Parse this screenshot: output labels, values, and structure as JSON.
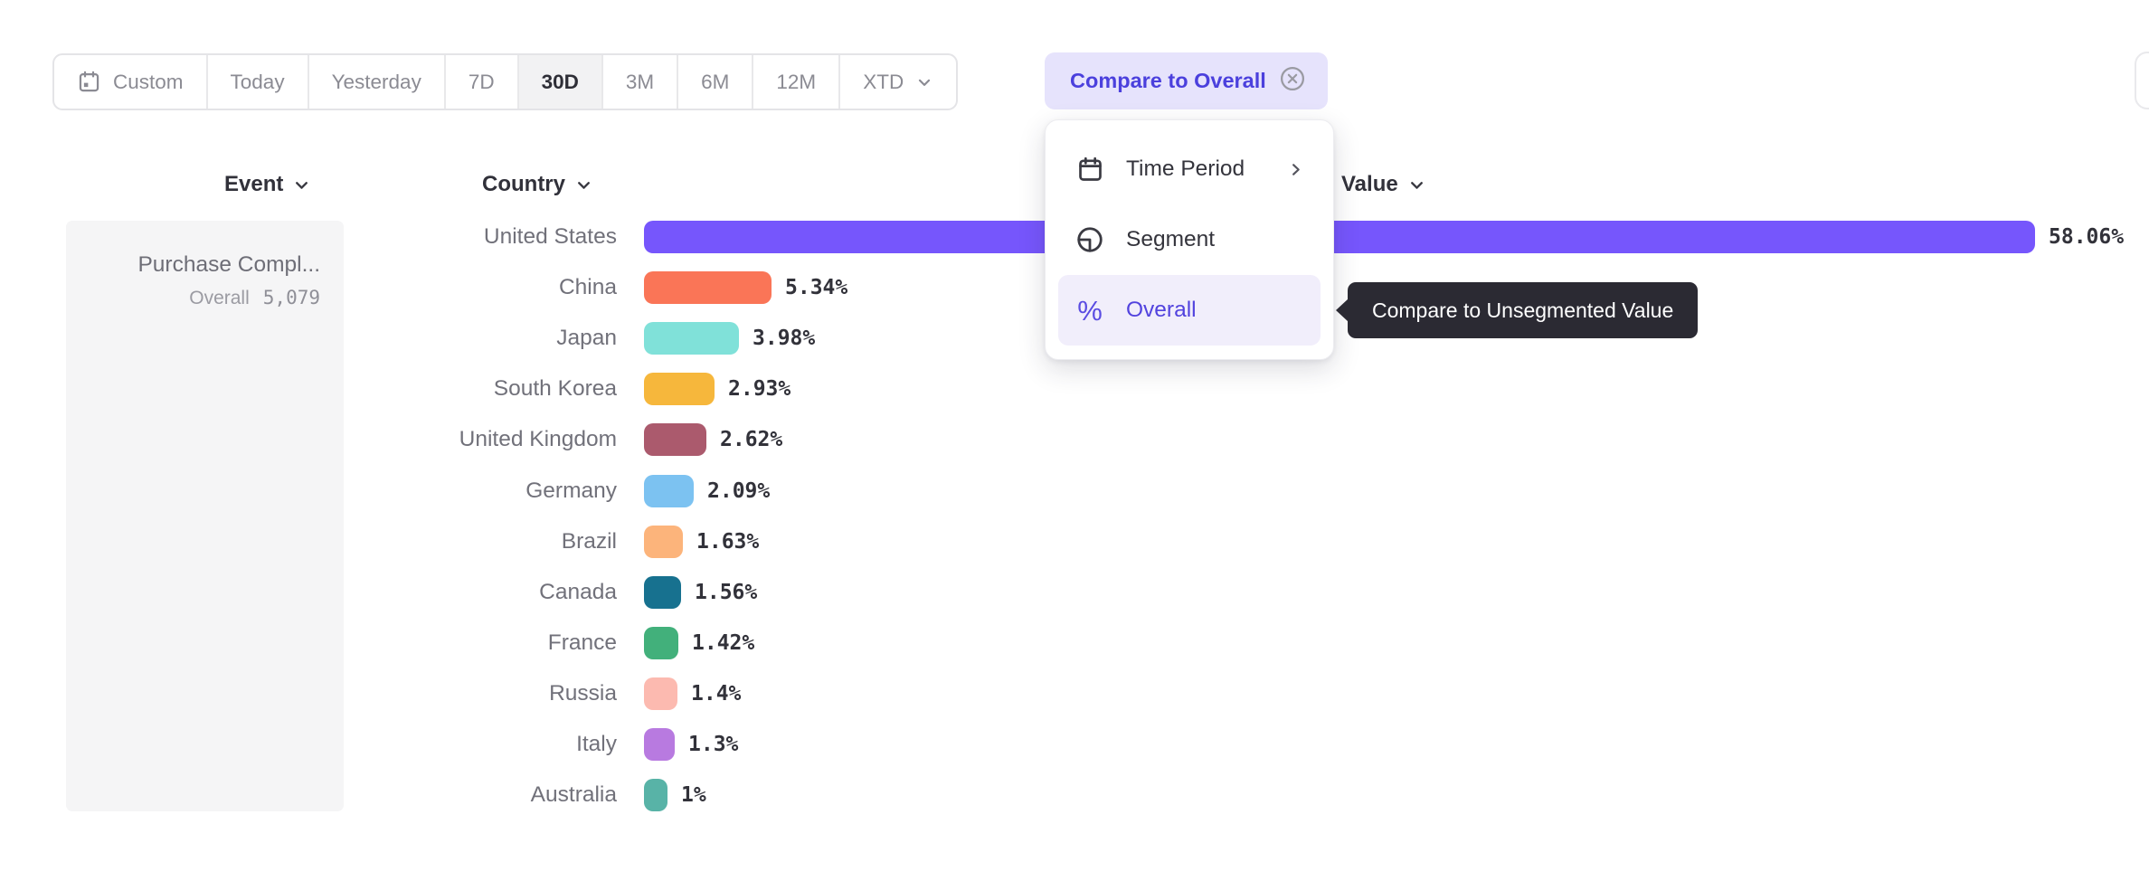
{
  "toolbar": {
    "items": [
      {
        "label": "Custom",
        "icon": "calendar"
      },
      {
        "label": "Today"
      },
      {
        "label": "Yesterday"
      },
      {
        "label": "7D"
      },
      {
        "label": "30D",
        "selected": true
      },
      {
        "label": "3M"
      },
      {
        "label": "6M"
      },
      {
        "label": "12M"
      },
      {
        "label": "XTD",
        "has_dropdown": true
      }
    ],
    "selected_range": "30D"
  },
  "compare_chip": {
    "label": "Compare to Overall"
  },
  "dropdown_menu": {
    "items": [
      {
        "label": "Time Period",
        "icon": "calendar-icon",
        "has_submenu": true
      },
      {
        "label": "Segment",
        "icon": "pie-segment-icon"
      },
      {
        "label": "Overall",
        "icon": "percent-icon",
        "highlighted": true
      }
    ]
  },
  "tooltip": {
    "text": "Compare to Unsegmented Value"
  },
  "headers": {
    "event": "Event",
    "country": "Country",
    "value": "Value"
  },
  "event_panel": {
    "event_name": "Purchase Compl...",
    "overall_label": "Overall",
    "overall_value": "5,079"
  },
  "chart_data": {
    "type": "bar",
    "orientation": "horizontal",
    "title": "",
    "xlabel": "Value",
    "ylabel": "Country",
    "categories": [
      "United States",
      "China",
      "Japan",
      "South Korea",
      "United Kingdom",
      "Germany",
      "Brazil",
      "Canada",
      "France",
      "Russia",
      "Italy",
      "Australia"
    ],
    "values": [
      58.06,
      5.34,
      3.98,
      2.93,
      2.62,
      2.09,
      1.63,
      1.56,
      1.42,
      1.4,
      1.3,
      1
    ],
    "value_labels": [
      "58.06%",
      "5.34%",
      "3.98%",
      "2.93%",
      "2.62%",
      "2.09%",
      "1.63%",
      "1.56%",
      "1.42%",
      "1.4%",
      "1.3%",
      "1%"
    ],
    "colors": [
      "#7656fc",
      "#fa7557",
      "#80e1d9",
      "#f6b73c",
      "#ab5a6d",
      "#7cc2f1",
      "#fcb47b",
      "#17718f",
      "#42b07b",
      "#fcbab0",
      "#b87ae0",
      "#58b3a7"
    ],
    "xlim": [
      0,
      60
    ],
    "grid": false,
    "legend": false
  },
  "colors": {
    "accent": "#4b40dd",
    "accent_bg": "#e6e3fc",
    "bar_primary": "#7656fc",
    "tooltip_bg": "#2b2a33",
    "panel_bg": "#f5f5f6"
  }
}
